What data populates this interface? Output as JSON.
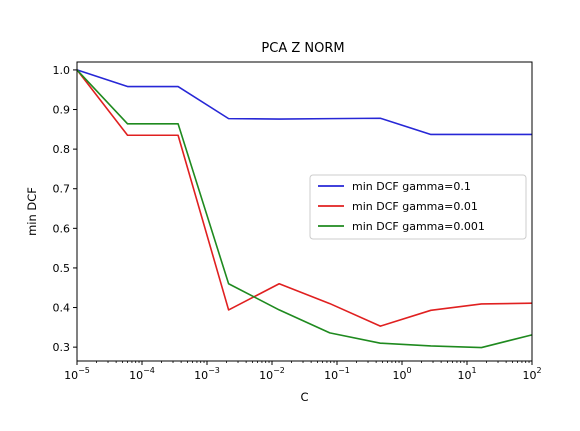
{
  "chart_data": {
    "type": "line",
    "title": "PCA Z NORM",
    "xlabel": "C",
    "ylabel": "min DCF",
    "xscale": "log",
    "xlim": [
      1e-05,
      100
    ],
    "ylim": [
      0.265,
      1.02
    ],
    "xticks": [
      {
        "value": 1e-05,
        "base": "10",
        "exp": "−5"
      },
      {
        "value": 0.0001,
        "base": "10",
        "exp": "−4"
      },
      {
        "value": 0.001,
        "base": "10",
        "exp": "−3"
      },
      {
        "value": 0.01,
        "base": "10",
        "exp": "−2"
      },
      {
        "value": 0.1,
        "base": "10",
        "exp": "−1"
      },
      {
        "value": 1,
        "base": "10",
        "exp": "0"
      },
      {
        "value": 10,
        "base": "10",
        "exp": "1"
      },
      {
        "value": 100,
        "base": "10",
        "exp": "2"
      }
    ],
    "yticks": [
      {
        "value": 0.3,
        "label": "0.3"
      },
      {
        "value": 0.4,
        "label": "0.4"
      },
      {
        "value": 0.5,
        "label": "0.5"
      },
      {
        "value": 0.6,
        "label": "0.6"
      },
      {
        "value": 0.7,
        "label": "0.7"
      },
      {
        "value": 0.8,
        "label": "0.8"
      },
      {
        "value": 0.9,
        "label": "0.9"
      },
      {
        "value": 1.0,
        "label": "1.0"
      }
    ],
    "x": [
      1e-05,
      5.99e-05,
      0.000359,
      0.00215,
      0.0129,
      0.0774,
      0.464,
      2.78,
      16.7,
      100
    ],
    "series": [
      {
        "name": "min DCF gamma=0.1",
        "color": "#2727d6",
        "values": [
          1.0,
          0.958,
          0.958,
          0.877,
          0.876,
          0.877,
          0.878,
          0.837,
          0.837,
          0.837
        ]
      },
      {
        "name": "min DCF gamma=0.01",
        "color": "#e02020",
        "values": [
          1.0,
          0.835,
          0.835,
          0.394,
          0.46,
          0.41,
          0.353,
          0.393,
          0.409,
          0.411
        ]
      },
      {
        "name": "min DCF gamma=0.001",
        "color": "#1f8a1f",
        "values": [
          1.0,
          0.864,
          0.864,
          0.46,
          0.394,
          0.336,
          0.31,
          0.303,
          0.299,
          0.331
        ]
      }
    ],
    "legend_position": "center-right",
    "grid": false
  }
}
